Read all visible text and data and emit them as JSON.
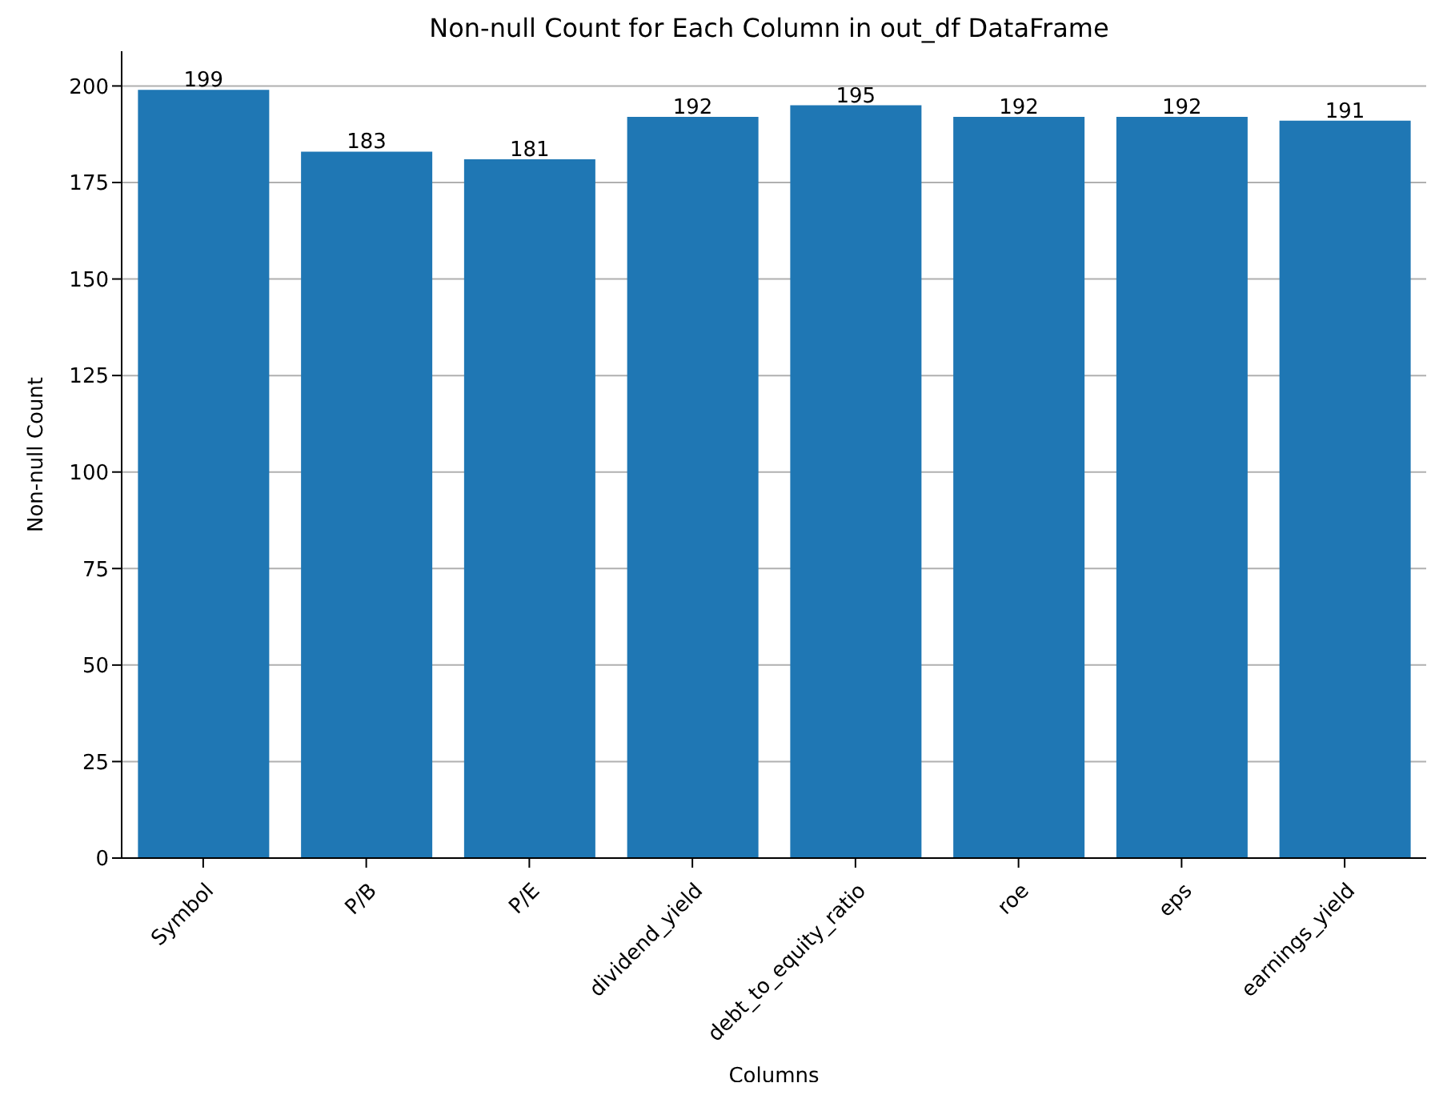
{
  "chart_data": {
    "type": "bar",
    "title": "Non-null Count for Each Column in out_df DataFrame",
    "xlabel": "Columns",
    "ylabel": "Non-null Count",
    "categories": [
      "Symbol",
      "P/B",
      "P/E",
      "dividend_yield",
      "debt_to_equity_ratio",
      "roe",
      "eps",
      "earnings_yield"
    ],
    "values": [
      199,
      183,
      181,
      192,
      195,
      192,
      192,
      191
    ],
    "color": "#1f77b4",
    "ylim": [
      0,
      209
    ],
    "yticks": [
      0,
      25,
      50,
      75,
      100,
      125,
      150,
      175,
      200
    ],
    "grid": "y",
    "data_labels": true
  }
}
